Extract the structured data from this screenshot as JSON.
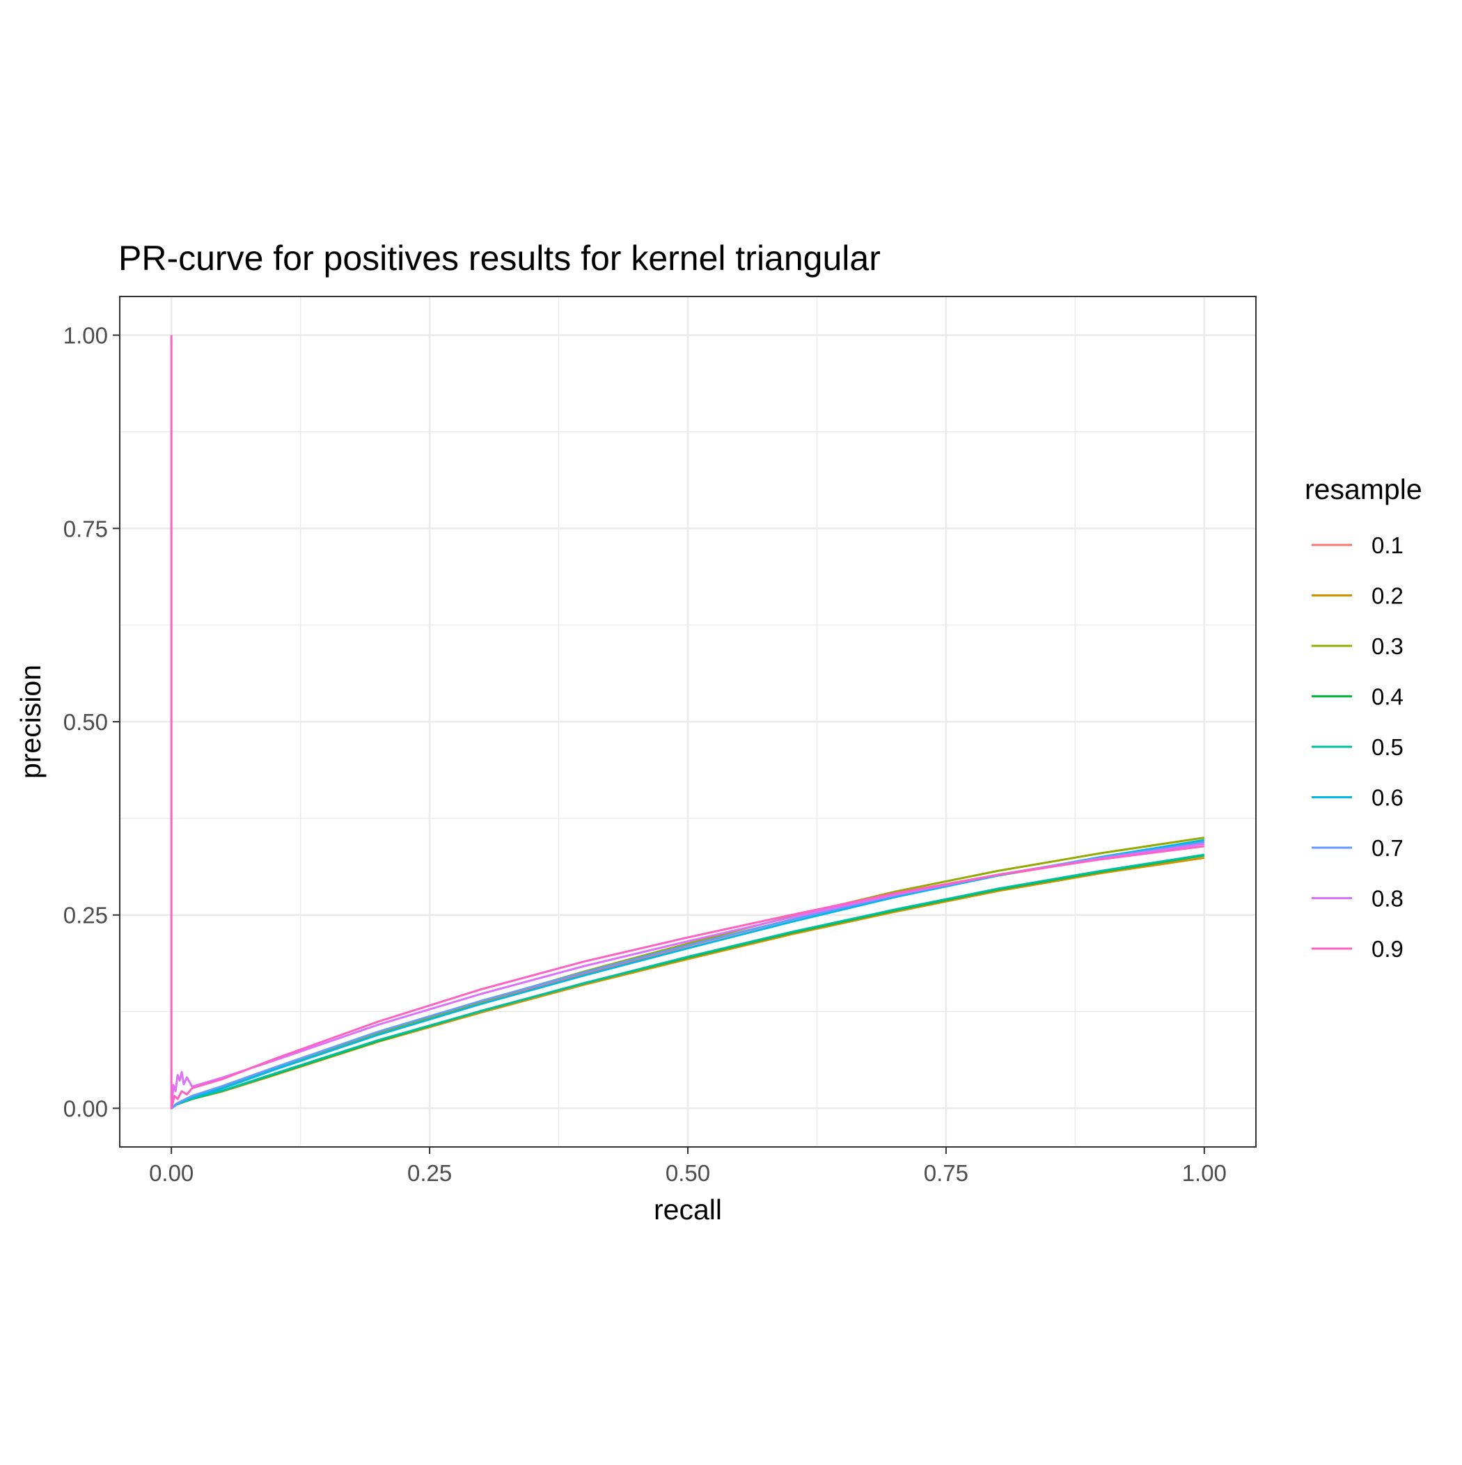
{
  "chart_data": {
    "type": "line",
    "title": "PR-curve for positives results for kernel triangular",
    "xlabel": "recall",
    "ylabel": "precision",
    "xlim": [
      -0.1,
      2.1
    ],
    "ylim": [
      -0.1,
      2.1
    ],
    "x_ticks": [
      0.0,
      0.25,
      0.5,
      0.75,
      1.0
    ],
    "x_tick_labels": [
      "0.00",
      "0.25",
      "0.50",
      "0.75",
      "1.00"
    ],
    "y_ticks": [
      0.0,
      0.25,
      0.5,
      0.75,
      1.0
    ],
    "y_tick_labels": [
      "0.00",
      "0.25",
      "0.50",
      "0.75",
      "1.00"
    ],
    "grid": true,
    "legend": {
      "title": "resample",
      "position": "right"
    },
    "series": [
      {
        "name": "0.1",
        "color": "#F8766D",
        "x": [
          0,
          0.005,
          0.02,
          0.05,
          0.1,
          0.2,
          0.3,
          0.4,
          0.5,
          0.6,
          0.7,
          0.8,
          0.9,
          1.0
        ],
        "y": [
          0,
          0.006,
          0.016,
          0.028,
          0.052,
          0.097,
          0.137,
          0.174,
          0.21,
          0.244,
          0.275,
          0.301,
          0.323,
          0.345
        ]
      },
      {
        "name": "0.2",
        "color": "#D39200",
        "x": [
          0,
          0.005,
          0.02,
          0.05,
          0.1,
          0.2,
          0.3,
          0.4,
          0.5,
          0.6,
          0.7,
          0.8,
          0.9,
          1.0
        ],
        "y": [
          0,
          0.005,
          0.012,
          0.022,
          0.043,
          0.086,
          0.124,
          0.16,
          0.193,
          0.225,
          0.254,
          0.281,
          0.304,
          0.324
        ]
      },
      {
        "name": "0.3",
        "color": "#93AA00",
        "x": [
          0,
          0.005,
          0.02,
          0.05,
          0.1,
          0.2,
          0.3,
          0.4,
          0.5,
          0.6,
          0.7,
          0.8,
          0.9,
          1.0
        ],
        "y": [
          0,
          0.006,
          0.015,
          0.028,
          0.052,
          0.097,
          0.138,
          0.177,
          0.213,
          0.248,
          0.28,
          0.307,
          0.33,
          0.35
        ]
      },
      {
        "name": "0.4",
        "color": "#00BA38",
        "x": [
          0,
          0.005,
          0.02,
          0.05,
          0.1,
          0.2,
          0.3,
          0.4,
          0.5,
          0.6,
          0.7,
          0.8,
          0.9,
          1.0
        ],
        "y": [
          0,
          0.005,
          0.012,
          0.023,
          0.044,
          0.087,
          0.126,
          0.162,
          0.195,
          0.227,
          0.256,
          0.283,
          0.306,
          0.327
        ]
      },
      {
        "name": "0.5",
        "color": "#00C19F",
        "x": [
          0,
          0.005,
          0.02,
          0.05,
          0.1,
          0.2,
          0.3,
          0.4,
          0.5,
          0.6,
          0.7,
          0.8,
          0.9,
          1.0
        ],
        "y": [
          0,
          0.005,
          0.013,
          0.023,
          0.045,
          0.088,
          0.126,
          0.162,
          0.196,
          0.228,
          0.257,
          0.284,
          0.307,
          0.328
        ]
      },
      {
        "name": "0.6",
        "color": "#00B9E3",
        "x": [
          0,
          0.005,
          0.02,
          0.05,
          0.1,
          0.2,
          0.3,
          0.4,
          0.5,
          0.6,
          0.7,
          0.8,
          0.9,
          1.0
        ],
        "y": [
          0,
          0.005,
          0.014,
          0.026,
          0.05,
          0.095,
          0.135,
          0.172,
          0.207,
          0.241,
          0.273,
          0.301,
          0.325,
          0.347
        ]
      },
      {
        "name": "0.7",
        "color": "#619CFF",
        "x": [
          0,
          0.005,
          0.02,
          0.05,
          0.1,
          0.2,
          0.3,
          0.4,
          0.5,
          0.6,
          0.7,
          0.8,
          0.9,
          1.0
        ],
        "y": [
          0,
          0.006,
          0.016,
          0.029,
          0.053,
          0.099,
          0.139,
          0.176,
          0.211,
          0.244,
          0.275,
          0.302,
          0.324,
          0.344
        ]
      },
      {
        "name": "0.8",
        "color": "#DB72FB",
        "x": [
          0,
          0.002,
          0.004,
          0.006,
          0.008,
          0.01,
          0.012,
          0.015,
          0.02,
          0.03,
          0.05,
          0.1,
          0.2,
          0.3,
          0.4,
          0.5,
          0.6,
          0.7,
          0.8,
          0.9,
          1.0
        ],
        "y": [
          0,
          0.03,
          0.022,
          0.043,
          0.036,
          0.047,
          0.031,
          0.04,
          0.028,
          0.032,
          0.04,
          0.062,
          0.108,
          0.148,
          0.184,
          0.216,
          0.247,
          0.276,
          0.302,
          0.323,
          0.342
        ]
      },
      {
        "name": "0.9",
        "color": "#FF61C3",
        "x": [
          0,
          0,
          0.003,
          0.006,
          0.01,
          0.015,
          0.02,
          0.03,
          0.05,
          0.1,
          0.2,
          0.3,
          0.4,
          0.5,
          0.6,
          0.7,
          0.8,
          0.9,
          1.0
        ],
        "y": [
          1.0,
          0,
          0.016,
          0.012,
          0.022,
          0.018,
          0.026,
          0.03,
          0.038,
          0.064,
          0.112,
          0.154,
          0.19,
          0.221,
          0.25,
          0.278,
          0.302,
          0.322,
          0.339
        ]
      }
    ]
  }
}
